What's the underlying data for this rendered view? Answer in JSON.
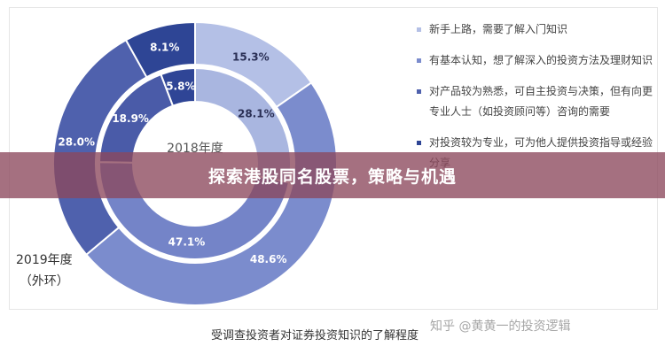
{
  "chart_data": {
    "type": "pie",
    "title": "",
    "inner": {
      "label": "2018年度",
      "slices": [
        {
          "label": "28.1%",
          "value": 28.1,
          "color": "#a9b6e0"
        },
        {
          "label": "47.1%",
          "value": 47.1,
          "color": "#7484c8"
        },
        {
          "label": "18.9%",
          "value": 18.9,
          "color": "#4a5ba8"
        },
        {
          "label": "5.8%",
          "value": 5.8,
          "color": "#2f4596"
        }
      ]
    },
    "outer": {
      "label_line1": "2019年度",
      "label_line2": "（外环）",
      "slices": [
        {
          "label": "15.3%",
          "value": 15.3,
          "color": "#b4c0e6"
        },
        {
          "label": "48.6%",
          "value": 48.6,
          "color": "#7b8ccd"
        },
        {
          "label": "28.0%",
          "value": 28.0,
          "color": "#4f61ad"
        },
        {
          "label": "8.1%",
          "value": 8.1,
          "color": "#2e4595"
        }
      ]
    },
    "legend": [
      {
        "text": "新手上路，需要了解入门知识",
        "color": "#b4c0e6"
      },
      {
        "text": "有基本认知，想了解深入的投资方法及理财知识",
        "color": "#7b8ccd"
      },
      {
        "text": "对产品较为熟悉，可自主投资与决策，但有向更专业人士（如投资顾问等）咨询的需要",
        "color": "#4f61ad"
      },
      {
        "text": "对投资较为专业，可为他人提供投资指导或经验分享",
        "color": "#2e4595"
      }
    ],
    "caption": "受调查投资者对证券投资知识的了解程度"
  },
  "banner": {
    "title": "探索港股同名股票，策略与机遇"
  },
  "watermark": "知乎 @黄黄一的投资逻辑"
}
